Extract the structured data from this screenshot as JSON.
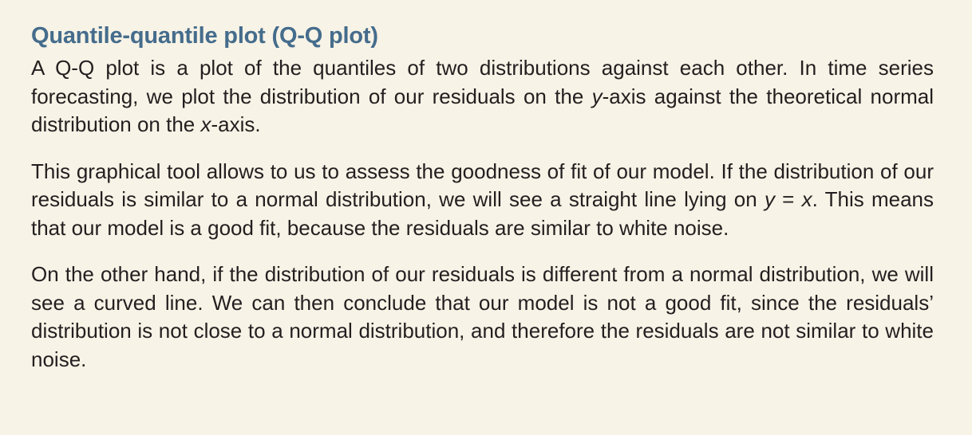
{
  "sidebar": {
    "title": "Quantile-quantile plot (Q-Q plot)",
    "para1": {
      "t1": "A Q-Q plot is a plot of the quantiles of two distributions against each other. In time series forecasting, we plot the distribution of our residuals on the ",
      "v1": "y",
      "t2": "-axis against the theoretical normal distribution on the ",
      "v2": "x",
      "t3": "-axis."
    },
    "para2": {
      "t1": "This graphical tool allows to us to assess the goodness of fit of our model. If the dis­tribution of our residuals is similar to a normal distribution, we will see a straight line lying on ",
      "v1": "y",
      "t2": " = ",
      "v2": "x",
      "t3": ". This means that our model is a good fit, because the residuals are similar to white noise."
    },
    "para3": {
      "text": "On the other hand, if the distribution of our residuals is different from a normal dis­tribution, we will see a curved line. We can then conclude that our model is not a good fit, since the residuals’ distribution is not close to a normal distribution, and therefore the residuals are not similar to white noise."
    }
  }
}
